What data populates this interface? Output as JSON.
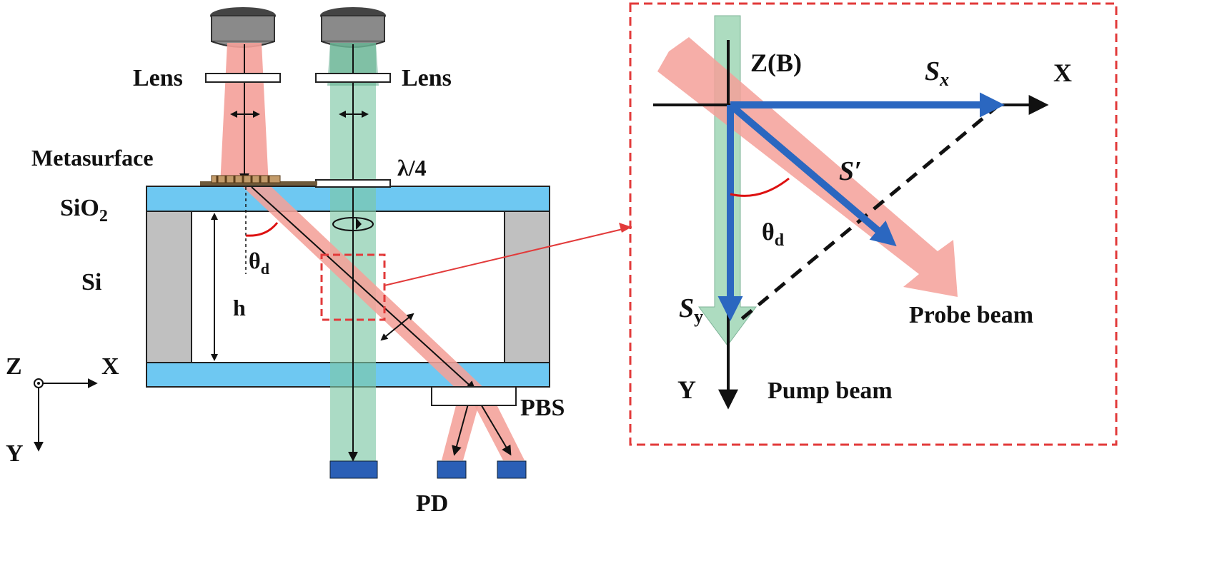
{
  "left_panel": {
    "lens_left_label": "Lens",
    "lens_right_label": "Lens",
    "metasurface_label": "Metasurface",
    "sio2_label_main": "SiO",
    "sio2_label_sub": "2",
    "si_label": "Si",
    "height_label": "h",
    "angle_label_main": "θ",
    "angle_label_sub": "d",
    "quarter_wave_label": "λ/4",
    "pbs_label": "PBS",
    "pd_label": "PD",
    "axis_z_label": "Z",
    "axis_x_label": "X",
    "axis_y_label": "Y"
  },
  "inset_panel": {
    "z_axis_label": "Z(B)",
    "x_axis_label": "X",
    "y_axis_label": "Y",
    "sx_label_main": "S",
    "sx_label_sub": "x",
    "sy_label_main": "S",
    "sy_label_sub": "y",
    "s_prime_label": "S′",
    "angle_label_main": "θ",
    "angle_label_sub": "d",
    "probe_beam_label": "Probe beam",
    "pump_beam_label": "Pump beam"
  },
  "colors": {
    "probe_beam": "#f4a099",
    "pump_beam": "#9fd6b6",
    "glass": "#6ec8f2",
    "si_wall": "#c0c0c0",
    "vector_arrow": "#2b67c0",
    "inset_border": "#e23a3a",
    "photodiode": "#2a5fb6"
  }
}
